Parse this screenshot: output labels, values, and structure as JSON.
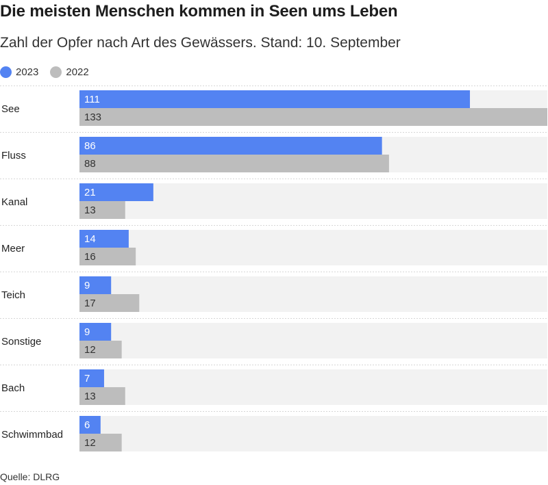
{
  "title": "Die meisten Menschen kommen in Seen ums Leben",
  "subtitle": "Zahl der Opfer nach Art des Gewässers. Stand: 10. September",
  "source": "Quelle: DLRG",
  "colors": {
    "series_2023": "#5383f2",
    "series_2022": "#bdbdbd",
    "track": "#f2f2f2",
    "separator": "#d6d6d6",
    "label_on_2023": "#ffffff",
    "label_on_2022": "#333333"
  },
  "chart_data": {
    "type": "bar",
    "orientation": "horizontal",
    "categories": [
      "See",
      "Fluss",
      "Kanal",
      "Meer",
      "Teich",
      "Sonstige",
      "Bach",
      "Schwimmbad"
    ],
    "series": [
      {
        "name": "2023",
        "values": [
          111,
          86,
          21,
          14,
          9,
          9,
          7,
          6
        ]
      },
      {
        "name": "2022",
        "values": [
          133,
          88,
          13,
          16,
          17,
          12,
          13,
          12
        ]
      }
    ],
    "xlim": [
      0,
      133
    ],
    "legend_position": "top-left",
    "grid": false
  }
}
